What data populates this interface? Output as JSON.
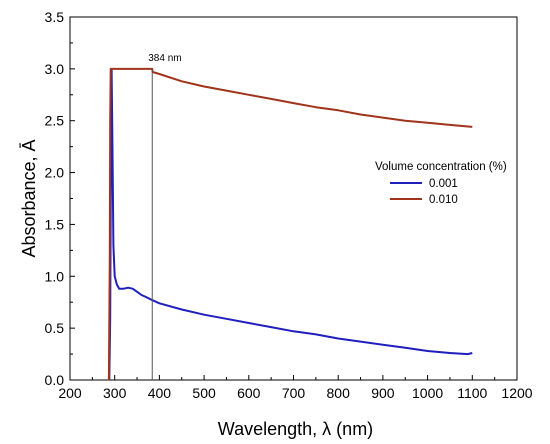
{
  "chart_data": {
    "type": "line",
    "xlabel": "Wavelength, λ (nm)",
    "ylabel": "Absorbance, Ā",
    "xlim": [
      200,
      1200
    ],
    "ylim": [
      0.0,
      3.5
    ],
    "xticks": [
      200,
      300,
      400,
      500,
      600,
      700,
      800,
      900,
      1000,
      1100,
      1200
    ],
    "yticks": [
      0.0,
      0.5,
      1.0,
      1.5,
      2.0,
      2.5,
      3.0,
      3.5
    ],
    "xtick_labels": [
      "200",
      "300",
      "400",
      "500",
      "600",
      "700",
      "800",
      "900",
      "1000",
      "1100",
      "1200"
    ],
    "ytick_labels": [
      "0.0",
      "0.5",
      "1.0",
      "1.5",
      "2.0",
      "2.5",
      "3.0",
      "3.5"
    ],
    "legend_title": "Volume concentration (%)",
    "legend_position": "center-right",
    "grid": false,
    "series": [
      {
        "name": "0.001",
        "color": "#1f1fbf",
        "points": [
          [
            288,
            0.0
          ],
          [
            290,
            0.6
          ],
          [
            292,
            2.5
          ],
          [
            293,
            3.0
          ],
          [
            295,
            2.2
          ],
          [
            297,
            1.3
          ],
          [
            300,
            1.0
          ],
          [
            305,
            0.92
          ],
          [
            310,
            0.88
          ],
          [
            320,
            0.88
          ],
          [
            330,
            0.89
          ],
          [
            340,
            0.88
          ],
          [
            350,
            0.85
          ],
          [
            360,
            0.82
          ],
          [
            370,
            0.8
          ],
          [
            384,
            0.77
          ],
          [
            400,
            0.74
          ],
          [
            450,
            0.68
          ],
          [
            500,
            0.63
          ],
          [
            550,
            0.59
          ],
          [
            600,
            0.55
          ],
          [
            650,
            0.51
          ],
          [
            700,
            0.47
          ],
          [
            750,
            0.44
          ],
          [
            800,
            0.4
          ],
          [
            850,
            0.37
          ],
          [
            900,
            0.34
          ],
          [
            950,
            0.31
          ],
          [
            1000,
            0.28
          ],
          [
            1050,
            0.26
          ],
          [
            1090,
            0.25
          ],
          [
            1100,
            0.26
          ]
        ]
      },
      {
        "name": "0.010",
        "color": "#a0341a",
        "points": [
          [
            287,
            0.0
          ],
          [
            289,
            1.2
          ],
          [
            290,
            2.5
          ],
          [
            291,
            3.0
          ],
          [
            384,
            3.0
          ],
          [
            385,
            2.97
          ],
          [
            400,
            2.95
          ],
          [
            450,
            2.88
          ],
          [
            500,
            2.83
          ],
          [
            550,
            2.79
          ],
          [
            600,
            2.75
          ],
          [
            650,
            2.71
          ],
          [
            700,
            2.67
          ],
          [
            750,
            2.63
          ],
          [
            800,
            2.6
          ],
          [
            850,
            2.56
          ],
          [
            900,
            2.53
          ],
          [
            950,
            2.5
          ],
          [
            1000,
            2.48
          ],
          [
            1050,
            2.46
          ],
          [
            1100,
            2.44
          ]
        ]
      }
    ],
    "annotations": [
      {
        "text": "384 nm",
        "x": 384
      }
    ]
  }
}
